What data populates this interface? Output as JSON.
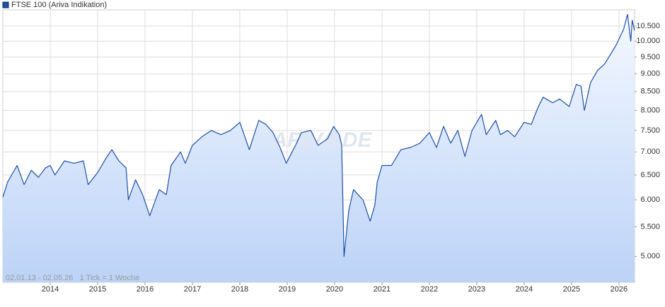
{
  "chart_data": {
    "type": "line",
    "title": "FTSE 100 (Ariva Indikation)",
    "note": "02.01.13 - 02.05.26   1 Tick = 1 Woche",
    "watermark": "ARIVA.DE",
    "log_scale": true,
    "grid": true,
    "legend": "top-left",
    "xlim": [
      2013,
      2026.33
    ],
    "xticks": [
      2014,
      2015,
      2016,
      2017,
      2018,
      2019,
      2020,
      2021,
      2022,
      2023,
      2024,
      2025,
      2026
    ],
    "ylim": [
      4600,
      11060
    ],
    "yticks": [
      {
        "value": 5000,
        "label": "5.000"
      },
      {
        "value": 5500,
        "label": "5.500"
      },
      {
        "value": 6000,
        "label": "6.000"
      },
      {
        "value": 6500,
        "label": "6.500"
      },
      {
        "value": 7000,
        "label": "7.000"
      },
      {
        "value": 7500,
        "label": "7.500"
      },
      {
        "value": 8000,
        "label": "8.000"
      },
      {
        "value": 8500,
        "label": "8.500"
      },
      {
        "value": 9000,
        "label": "9.000"
      },
      {
        "value": 9500,
        "label": "9.500"
      },
      {
        "value": 10000,
        "label": "10.000"
      },
      {
        "value": 10500,
        "label": "10.500"
      }
    ],
    "series": [
      {
        "name": "FTSE 100 (Ariva Indikation)",
        "color": "#1f4fa8",
        "x": [
          2013.0,
          2013.1,
          2013.3,
          2013.45,
          2013.6,
          2013.75,
          2013.9,
          2014.0,
          2014.1,
          2014.3,
          2014.5,
          2014.7,
          2014.8,
          2015.0,
          2015.2,
          2015.3,
          2015.45,
          2015.6,
          2015.65,
          2015.8,
          2015.95,
          2016.1,
          2016.3,
          2016.45,
          2016.55,
          2016.75,
          2016.85,
          2017.0,
          2017.2,
          2017.4,
          2017.6,
          2017.8,
          2018.0,
          2018.2,
          2018.4,
          2018.55,
          2018.7,
          2018.85,
          2018.98,
          2019.2,
          2019.3,
          2019.5,
          2019.65,
          2019.85,
          2019.98,
          2020.1,
          2020.15,
          2020.2,
          2020.3,
          2020.4,
          2020.6,
          2020.75,
          2020.85,
          2020.9,
          2021.0,
          2021.2,
          2021.4,
          2021.6,
          2021.8,
          2022.0,
          2022.15,
          2022.3,
          2022.45,
          2022.6,
          2022.75,
          2022.9,
          2023.1,
          2023.2,
          2023.4,
          2023.5,
          2023.65,
          2023.8,
          2024.0,
          2024.15,
          2024.3,
          2024.4,
          2024.6,
          2024.75,
          2024.95,
          2025.1,
          2025.2,
          2025.27,
          2025.4,
          2025.55,
          2025.7,
          2025.85,
          2025.95,
          2026.1,
          2026.18,
          2026.25,
          2026.28,
          2026.33
        ],
        "values": [
          6050,
          6350,
          6700,
          6300,
          6600,
          6450,
          6650,
          6700,
          6500,
          6800,
          6750,
          6800,
          6300,
          6550,
          6900,
          7050,
          6800,
          6650,
          6000,
          6400,
          6100,
          5700,
          6200,
          6100,
          6700,
          7000,
          6750,
          7150,
          7350,
          7500,
          7400,
          7500,
          7700,
          7050,
          7750,
          7650,
          7450,
          7100,
          6750,
          7200,
          7450,
          7500,
          7150,
          7300,
          7600,
          7400,
          7150,
          5000,
          5800,
          6200,
          6000,
          5600,
          5900,
          6350,
          6700,
          6700,
          7050,
          7100,
          7200,
          7450,
          7100,
          7600,
          7200,
          7500,
          6900,
          7500,
          7900,
          7400,
          7750,
          7400,
          7500,
          7350,
          7700,
          7650,
          8100,
          8350,
          8200,
          8300,
          8100,
          8700,
          8650,
          8000,
          8750,
          9100,
          9300,
          9650,
          9900,
          10400,
          10900,
          10000,
          10700,
          10350
        ]
      }
    ]
  }
}
